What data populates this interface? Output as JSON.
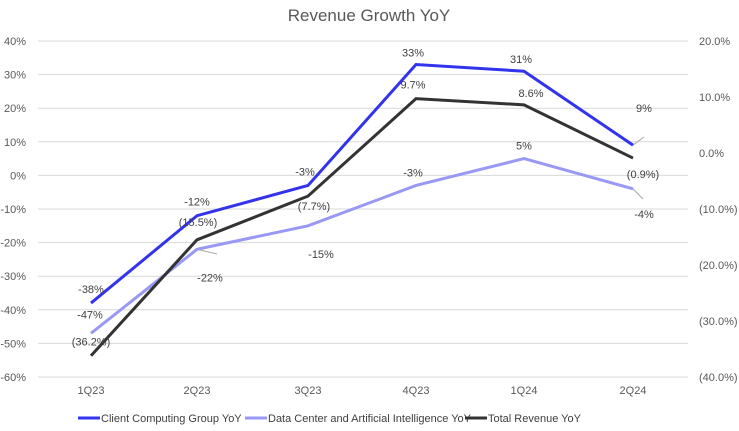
{
  "chart_data": {
    "type": "line",
    "title": "Revenue Growth YoY",
    "categories": [
      "1Q23",
      "2Q23",
      "3Q23",
      "4Q23",
      "1Q24",
      "2Q24"
    ],
    "y_left": {
      "range": [
        -60,
        40
      ],
      "step": 10,
      "tick_labels": [
        "40%",
        "30%",
        "20%",
        "10%",
        "0%",
        "-10%",
        "-20%",
        "-30%",
        "-40%",
        "-50%",
        "-60%"
      ]
    },
    "y_right": {
      "range": [
        -40,
        20
      ],
      "step": 10,
      "tick_labels": [
        "20.0%",
        "10.0%",
        "0.0%",
        "(10.0%)",
        "(20.0%)",
        "(30.0%)",
        "(40.0%)"
      ]
    },
    "grid": true,
    "legend_position": "bottom",
    "series": [
      {
        "name": "Client Computing Group YoY",
        "axis": "left",
        "color": "#3333ee",
        "values": [
          -38,
          -12,
          -3,
          33,
          31,
          9
        ],
        "labels": [
          "-38%",
          "-12%",
          "-3%",
          "33%",
          "31%",
          "9%"
        ]
      },
      {
        "name": "Data Center and Artificial Intelligence YoY",
        "axis": "left",
        "color": "#9999f5",
        "values": [
          -47,
          -22,
          -15,
          -3,
          5,
          -4
        ],
        "labels": [
          "-47%",
          "-22%",
          "-15%",
          "-3%",
          "5%",
          "-4%"
        ]
      },
      {
        "name": "Total Revenue YoY",
        "axis": "right",
        "color": "#333333",
        "values": [
          -36.2,
          -15.5,
          -7.7,
          9.7,
          8.6,
          -0.9
        ],
        "labels": [
          "(36.2%)",
          "(15.5%)",
          "(7.7%)",
          "9.7%",
          "8.6%",
          "(0.9%)"
        ]
      }
    ]
  }
}
